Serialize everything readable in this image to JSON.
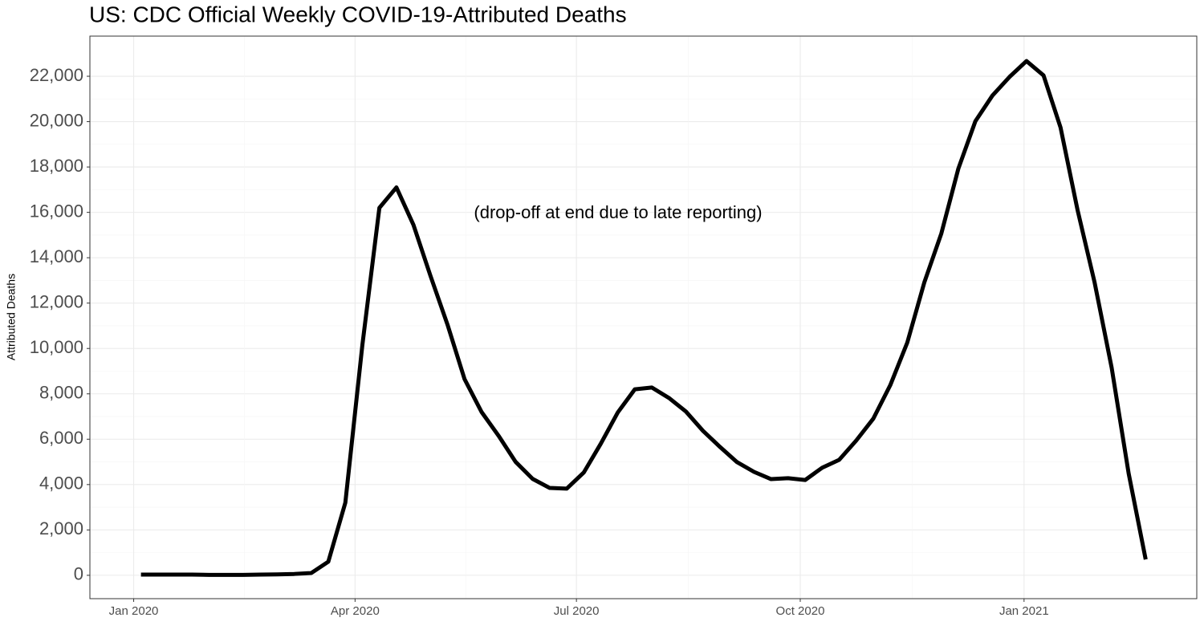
{
  "chart_data": {
    "type": "line",
    "title": "US: CDC Official Weekly COVID-19-Attributed Deaths",
    "y_label": "Attributed Deaths",
    "annotation": "(drop-off at end due to late reporting)",
    "x": [
      "2020-01-04",
      "2020-01-11",
      "2020-01-18",
      "2020-01-25",
      "2020-02-01",
      "2020-02-08",
      "2020-02-15",
      "2020-02-22",
      "2020-02-29",
      "2020-03-07",
      "2020-03-14",
      "2020-03-21",
      "2020-03-28",
      "2020-04-04",
      "2020-04-11",
      "2020-04-18",
      "2020-04-25",
      "2020-05-02",
      "2020-05-09",
      "2020-05-16",
      "2020-05-23",
      "2020-05-30",
      "2020-06-06",
      "2020-06-13",
      "2020-06-20",
      "2020-06-27",
      "2020-07-04",
      "2020-07-11",
      "2020-07-18",
      "2020-07-25",
      "2020-08-01",
      "2020-08-08",
      "2020-08-15",
      "2020-08-22",
      "2020-08-29",
      "2020-09-05",
      "2020-09-12",
      "2020-09-19",
      "2020-09-26",
      "2020-10-03",
      "2020-10-10",
      "2020-10-17",
      "2020-10-24",
      "2020-10-31",
      "2020-11-07",
      "2020-11-14",
      "2020-11-21",
      "2020-11-28",
      "2020-12-05",
      "2020-12-12",
      "2020-12-19",
      "2020-12-26",
      "2021-01-02",
      "2021-01-09",
      "2021-01-16",
      "2021-01-23",
      "2021-01-30",
      "2021-02-06",
      "2021-02-13",
      "2021-02-20"
    ],
    "series": [
      {
        "name": "Attributed Deaths",
        "color": "#000000",
        "values": [
          30,
          30,
          30,
          30,
          20,
          20,
          20,
          30,
          40,
          60,
          100,
          600,
          3200,
          10150,
          16200,
          17100,
          15450,
          13200,
          11050,
          8650,
          7200,
          6150,
          5000,
          4250,
          3850,
          3820,
          4530,
          5800,
          7180,
          8200,
          8280,
          7820,
          7220,
          6370,
          5660,
          4990,
          4560,
          4240,
          4280,
          4200,
          4740,
          5090,
          5940,
          6900,
          8380,
          10260,
          12910,
          15070,
          17930,
          20020,
          21150,
          21970,
          22670,
          22040,
          19740,
          16100,
          12910,
          9160,
          4490,
          700
        ]
      }
    ],
    "xlim": [
      "2019-12-14",
      "2021-03-13"
    ],
    "xticks": [
      {
        "value": "2020-01-01",
        "label": "Jan 2020"
      },
      {
        "value": "2020-04-01",
        "label": "Apr 2020"
      },
      {
        "value": "2020-07-01",
        "label": "Jul 2020"
      },
      {
        "value": "2020-10-01",
        "label": "Oct 2020"
      },
      {
        "value": "2021-01-01",
        "label": "Jan 2021"
      }
    ],
    "ylim": [
      -1030,
      23770
    ],
    "yticks": [
      0,
      {
        "value": 2000,
        "label": "2,000"
      },
      {
        "value": 4000,
        "label": "4,000"
      },
      {
        "value": 6000,
        "label": "6,000"
      },
      {
        "value": 8000,
        "label": "8,000"
      },
      {
        "value": 10000,
        "label": "10,000"
      },
      {
        "value": 12000,
        "label": "12,000"
      },
      {
        "value": 14000,
        "label": "14,000"
      },
      {
        "value": 16000,
        "label": "16,000"
      },
      {
        "value": 18000,
        "label": "18,000"
      },
      {
        "value": 20000,
        "label": "20,000"
      },
      {
        "value": 22000,
        "label": "22,000"
      }
    ],
    "grid": true
  }
}
